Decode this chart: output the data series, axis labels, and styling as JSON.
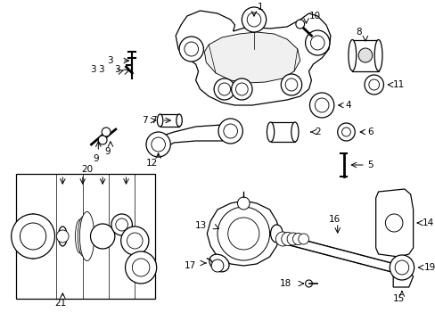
{
  "bg_color": "#ffffff",
  "fig_width": 4.89,
  "fig_height": 3.6,
  "dpi": 100,
  "label_fontsize": 7.5,
  "lw": 0.9
}
